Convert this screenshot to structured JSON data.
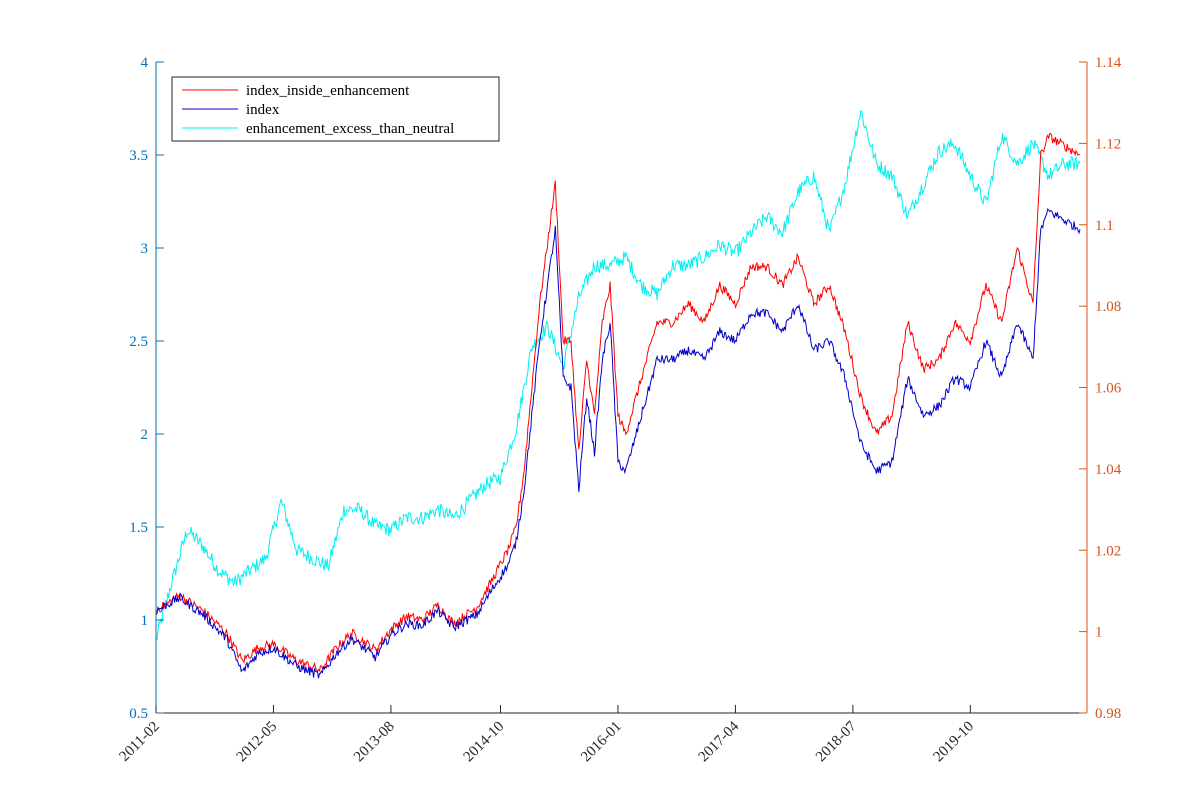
{
  "colors": {
    "left_axis": "#0072BD",
    "right_axis": "#D95319",
    "index_inside_enhancement": "#ff0000",
    "index": "#0000cc",
    "enhancement_excess_than_neutral": "#00f0f0"
  },
  "chart_data": {
    "type": "line",
    "title": "",
    "xlabel": "",
    "ylabel_left": "",
    "ylabel_right": "",
    "x_ticks": [
      "2011-02",
      "2012-05",
      "2013-08",
      "2014-10",
      "2016-01",
      "2017-04",
      "2018-07",
      "2019-10"
    ],
    "x_range": [
      "2011-02",
      "2020-12"
    ],
    "y_left": {
      "range": [
        0.5,
        4
      ],
      "ticks": [
        "0.5",
        "1",
        "1.5",
        "2",
        "2.5",
        "3",
        "3.5",
        "4"
      ]
    },
    "y_right": {
      "range": [
        0.98,
        1.14
      ],
      "ticks": [
        "0.98",
        "1",
        "1.02",
        "1.04",
        "1.06",
        "1.08",
        "1.1",
        "1.12",
        "1.14"
      ]
    },
    "grid": false,
    "legend": {
      "placement": "top-left"
    },
    "series": [
      {
        "name": "index_inside_enhancement",
        "axis": "left",
        "color_key": "index_inside_enhancement",
        "x": [
          "2011-02",
          "2011-05",
          "2011-08",
          "2011-11",
          "2012-01",
          "2012-03",
          "2012-05",
          "2012-08",
          "2012-11",
          "2013-01",
          "2013-03",
          "2013-06",
          "2013-08",
          "2013-10",
          "2013-12",
          "2014-02",
          "2014-04",
          "2014-07",
          "2014-09",
          "2014-11",
          "2014-12",
          "2015-01",
          "2015-03",
          "2015-05",
          "2015-06",
          "2015-07",
          "2015-08",
          "2015-09",
          "2015-10",
          "2015-11",
          "2015-12",
          "2016-01",
          "2016-02",
          "2016-04",
          "2016-06",
          "2016-08",
          "2016-10",
          "2016-12",
          "2017-02",
          "2017-04",
          "2017-06",
          "2017-08",
          "2017-10",
          "2017-12",
          "2018-02",
          "2018-04",
          "2018-06",
          "2018-08",
          "2018-10",
          "2018-12",
          "2019-02",
          "2019-04",
          "2019-06",
          "2019-08",
          "2019-10",
          "2019-12",
          "2020-02",
          "2020-04",
          "2020-06",
          "2020-07",
          "2020-08",
          "2020-10",
          "2020-12"
        ],
        "values": [
          1.05,
          1.13,
          1.05,
          0.93,
          0.78,
          0.85,
          0.87,
          0.78,
          0.73,
          0.85,
          0.93,
          0.84,
          0.95,
          1.02,
          1.0,
          1.08,
          0.98,
          1.07,
          1.22,
          1.38,
          1.5,
          1.8,
          2.7,
          3.35,
          2.5,
          2.5,
          1.9,
          2.4,
          2.1,
          2.6,
          2.8,
          2.1,
          2.0,
          2.3,
          2.6,
          2.6,
          2.7,
          2.6,
          2.8,
          2.7,
          2.9,
          2.9,
          2.8,
          2.95,
          2.7,
          2.8,
          2.55,
          2.2,
          2.0,
          2.1,
          2.6,
          2.35,
          2.4,
          2.6,
          2.5,
          2.8,
          2.6,
          3.0,
          2.7,
          3.5,
          3.6,
          3.55,
          3.5
        ]
      },
      {
        "name": "index",
        "axis": "left",
        "color_key": "index",
        "x": [
          "2011-02",
          "2011-05",
          "2011-08",
          "2011-11",
          "2012-01",
          "2012-03",
          "2012-05",
          "2012-08",
          "2012-11",
          "2013-01",
          "2013-03",
          "2013-06",
          "2013-08",
          "2013-10",
          "2013-12",
          "2014-02",
          "2014-04",
          "2014-07",
          "2014-09",
          "2014-11",
          "2014-12",
          "2015-01",
          "2015-03",
          "2015-05",
          "2015-06",
          "2015-07",
          "2015-08",
          "2015-09",
          "2015-10",
          "2015-11",
          "2015-12",
          "2016-01",
          "2016-02",
          "2016-04",
          "2016-06",
          "2016-08",
          "2016-10",
          "2016-12",
          "2017-02",
          "2017-04",
          "2017-06",
          "2017-08",
          "2017-10",
          "2017-12",
          "2018-02",
          "2018-04",
          "2018-06",
          "2018-08",
          "2018-10",
          "2018-12",
          "2019-02",
          "2019-04",
          "2019-06",
          "2019-08",
          "2019-10",
          "2019-12",
          "2020-02",
          "2020-04",
          "2020-06",
          "2020-07",
          "2020-08",
          "2020-10",
          "2020-12"
        ],
        "values": [
          1.05,
          1.12,
          1.03,
          0.9,
          0.72,
          0.82,
          0.85,
          0.75,
          0.7,
          0.82,
          0.9,
          0.8,
          0.92,
          0.98,
          0.97,
          1.05,
          0.96,
          1.03,
          1.17,
          1.3,
          1.42,
          1.7,
          2.5,
          3.1,
          2.3,
          2.25,
          1.7,
          2.2,
          1.9,
          2.4,
          2.6,
          1.85,
          1.8,
          2.1,
          2.4,
          2.4,
          2.45,
          2.4,
          2.55,
          2.5,
          2.65,
          2.65,
          2.55,
          2.7,
          2.45,
          2.5,
          2.3,
          1.95,
          1.8,
          1.85,
          2.3,
          2.1,
          2.15,
          2.3,
          2.25,
          2.5,
          2.3,
          2.6,
          2.4,
          3.1,
          3.2,
          3.15,
          3.1
        ]
      },
      {
        "name": "enhancement_excess_than_neutral",
        "axis": "right",
        "color_key": "enhancement_excess_than_neutral",
        "x": [
          "2011-02",
          "2011-04",
          "2011-06",
          "2011-08",
          "2011-10",
          "2011-12",
          "2012-02",
          "2012-04",
          "2012-06",
          "2012-08",
          "2012-10",
          "2012-12",
          "2013-02",
          "2013-04",
          "2013-06",
          "2013-08",
          "2013-10",
          "2013-12",
          "2014-02",
          "2014-04",
          "2014-06",
          "2014-08",
          "2014-10",
          "2014-12",
          "2015-02",
          "2015-04",
          "2015-06",
          "2015-08",
          "2015-10",
          "2015-12",
          "2016-02",
          "2016-04",
          "2016-06",
          "2016-08",
          "2016-10",
          "2016-12",
          "2017-02",
          "2017-04",
          "2017-06",
          "2017-08",
          "2017-10",
          "2017-12",
          "2018-02",
          "2018-04",
          "2018-06",
          "2018-08",
          "2018-10",
          "2018-12",
          "2019-02",
          "2019-04",
          "2019-06",
          "2019-08",
          "2019-10",
          "2019-12",
          "2020-02",
          "2020-04",
          "2020-06",
          "2020-08",
          "2020-10",
          "2020-12"
        ],
        "values": [
          0.998,
          1.012,
          1.025,
          1.021,
          1.015,
          1.012,
          1.015,
          1.018,
          1.032,
          1.02,
          1.018,
          1.016,
          1.03,
          1.03,
          1.026,
          1.025,
          1.028,
          1.028,
          1.03,
          1.028,
          1.032,
          1.036,
          1.038,
          1.05,
          1.07,
          1.075,
          1.065,
          1.082,
          1.09,
          1.09,
          1.092,
          1.085,
          1.083,
          1.09,
          1.09,
          1.092,
          1.095,
          1.093,
          1.098,
          1.102,
          1.098,
          1.108,
          1.112,
          1.098,
          1.11,
          1.128,
          1.115,
          1.112,
          1.102,
          1.11,
          1.118,
          1.12,
          1.112,
          1.105,
          1.122,
          1.115,
          1.12,
          1.112,
          1.115,
          1.115
        ]
      }
    ]
  }
}
